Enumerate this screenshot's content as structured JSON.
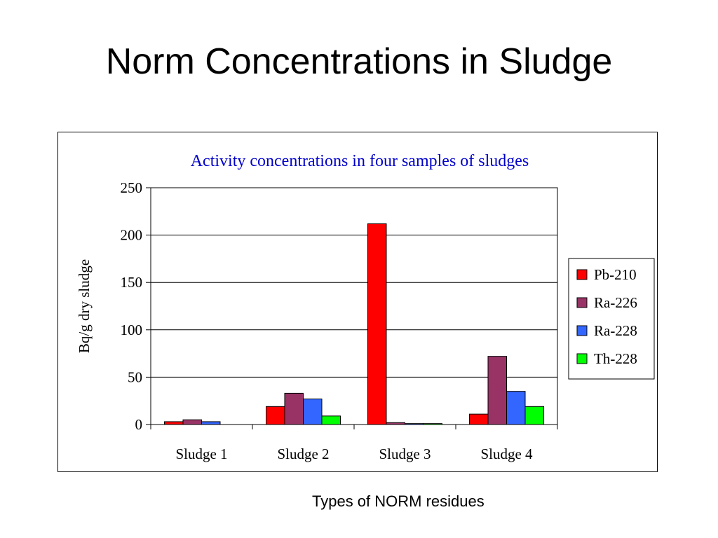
{
  "slide": {
    "title": "Norm Concentrations in Sludge",
    "caption": "Types of NORM residues"
  },
  "chart_data": {
    "type": "bar",
    "title": "Activity concentrations in four samples of sludges",
    "title_color": "#0000CC",
    "xlabel": "",
    "ylabel": "Bq/g dry sludge",
    "ylim": [
      0,
      250
    ],
    "yticks": [
      0,
      50,
      100,
      150,
      200,
      250
    ],
    "grid": true,
    "legend_position": "right",
    "categories": [
      "Sludge 1",
      "Sludge 2",
      "Sludge 3",
      "Sludge 4"
    ],
    "series": [
      {
        "name": "Pb-210",
        "color": "#FF0000",
        "values": [
          3,
          19,
          212,
          11
        ]
      },
      {
        "name": "Ra-226",
        "color": "#993366",
        "values": [
          5,
          33,
          2,
          72
        ]
      },
      {
        "name": "Ra-228",
        "color": "#3366FF",
        "values": [
          3,
          27,
          1,
          35
        ]
      },
      {
        "name": "Th-228",
        "color": "#00FF00",
        "values": [
          0,
          9,
          1,
          19
        ]
      }
    ]
  }
}
